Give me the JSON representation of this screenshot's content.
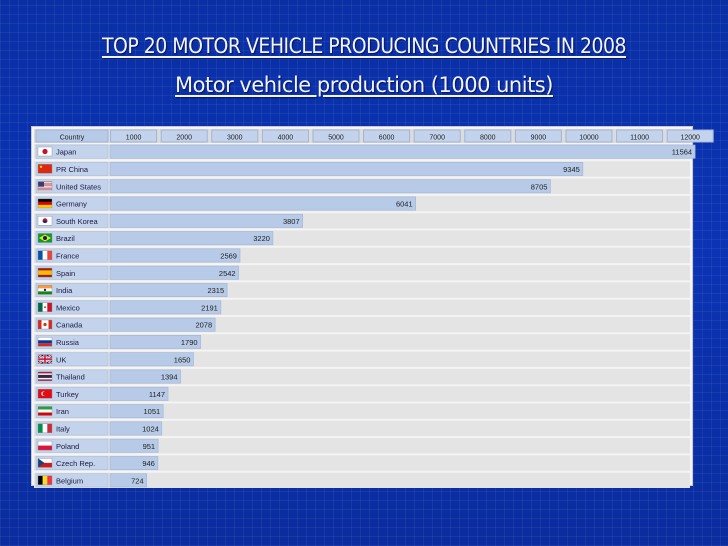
{
  "title": "TOP 20 MOTOR VEHICLE PRODUCING COUNTRIES IN 2008",
  "subtitle": "Motor vehicle production (1000 units)",
  "colors": {
    "bar": "#b7cae7",
    "bar_edge": "#9fb5d8",
    "row_bg": "#e4e4e4",
    "background": "#0b33b4"
  },
  "chart_data": {
    "type": "bar",
    "orientation": "horizontal",
    "title": "Motor vehicle production (1000 units)",
    "column_header": "Country",
    "xticks": [
      1000,
      2000,
      3000,
      4000,
      5000,
      6000,
      7000,
      8000,
      9000,
      10000,
      11000,
      12000
    ],
    "xlim": [
      0,
      12000
    ],
    "categories": [
      "Japan",
      "PR China",
      "United States",
      "Germany",
      "South Korea",
      "Brazil",
      "France",
      "Spain",
      "India",
      "Mexico",
      "Canada",
      "Russia",
      "UK",
      "Thailand",
      "Turkey",
      "Iran",
      "Italy",
      "Poland",
      "Czech Rep.",
      "Belgium"
    ],
    "values": [
      11564,
      9345,
      8705,
      6041,
      3807,
      3220,
      2569,
      2542,
      2315,
      2191,
      2078,
      1790,
      1650,
      1394,
      1147,
      1051,
      1024,
      951,
      946,
      724
    ],
    "value_labels": [
      "11564",
      "9345",
      "8705",
      "6041",
      "3807",
      "3220",
      "2569",
      "2542",
      "2315",
      "2191",
      "2078",
      "1790",
      "1650",
      "1394",
      "1147",
      "1051",
      "1024",
      "951",
      "946",
      "724"
    ],
    "flags": [
      "jp",
      "cn",
      "us",
      "de",
      "kr",
      "br",
      "fr",
      "es",
      "in",
      "mx",
      "ca",
      "ru",
      "uk",
      "th",
      "tr",
      "ir",
      "it",
      "pl",
      "cz",
      "be"
    ]
  }
}
